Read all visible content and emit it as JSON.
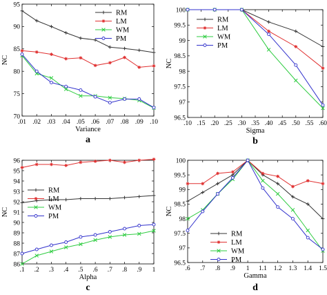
{
  "chart_data": [
    {
      "type": "line",
      "panel_label": "a",
      "xlabel": "Variance",
      "ylabel": "NC",
      "xlim": [
        0.01,
        0.1
      ],
      "ylim": [
        70,
        95
      ],
      "xtick_values": [
        0.01,
        0.02,
        0.03,
        0.04,
        0.05,
        0.06,
        0.07,
        0.08,
        0.09,
        0.1
      ],
      "xtick_labels": [
        ".01",
        ".02",
        ".03",
        ".04",
        ".05",
        ".06",
        ".07",
        ".08",
        ".09",
        ".10"
      ],
      "ytick_values": [
        70,
        75,
        80,
        85,
        90,
        95
      ],
      "ytick_labels": [
        "70",
        "75",
        "80",
        "85",
        "90",
        "95"
      ],
      "legend_position": "top-right",
      "x": [
        0.01,
        0.02,
        0.03,
        0.04,
        0.05,
        0.06,
        0.07,
        0.08,
        0.09,
        0.1
      ],
      "series": [
        {
          "name": "RM",
          "color": "#333333",
          "marker": "plus",
          "values": [
            93.5,
            91.3,
            90.0,
            88.6,
            87.4,
            87.0,
            85.4,
            85.1,
            84.7,
            84.2
          ]
        },
        {
          "name": "LM",
          "color": "#e03030",
          "marker": "star",
          "values": [
            84.6,
            84.3,
            83.8,
            82.8,
            83.0,
            81.3,
            81.9,
            83.1,
            80.9,
            81.2
          ]
        },
        {
          "name": "WM",
          "color": "#2ecc40",
          "marker": "x",
          "values": [
            83.5,
            79.5,
            78.5,
            76.0,
            74.5,
            74.5,
            74.1,
            73.9,
            73.5,
            71.8
          ]
        },
        {
          "name": "PM",
          "color": "#3030cc",
          "marker": "circle",
          "values": [
            83.8,
            80.0,
            77.5,
            76.6,
            75.8,
            74.3,
            73.0,
            73.8,
            73.8,
            71.9
          ]
        }
      ]
    },
    {
      "type": "line",
      "panel_label": "b",
      "xlabel": "Sigma",
      "ylabel": "NC",
      "xlim": [
        0.1,
        0.6
      ],
      "ylim": [
        96.5,
        100
      ],
      "xtick_values": [
        0.1,
        0.15,
        0.2,
        0.25,
        0.3,
        0.35,
        0.4,
        0.45,
        0.5,
        0.55,
        0.6
      ],
      "xtick_labels": [
        ".10",
        ".15",
        ".20",
        ".25",
        ".30",
        ".35",
        ".40",
        ".45",
        ".50",
        ".55",
        ".60"
      ],
      "ytick_values": [
        96.5,
        97,
        97.5,
        98,
        98.5,
        99,
        99.5,
        100
      ],
      "ytick_labels": [
        "96.5",
        "97",
        "97.5",
        "98",
        "98.5",
        "99",
        "99.5",
        "100"
      ],
      "legend_position": "top-left",
      "x": [
        0.1,
        0.2,
        0.3,
        0.4,
        0.5,
        0.6
      ],
      "series": [
        {
          "name": "RM",
          "color": "#333333",
          "marker": "plus",
          "values": [
            100,
            100,
            100,
            99.6,
            99.3,
            98.8
          ]
        },
        {
          "name": "LM",
          "color": "#e03030",
          "marker": "star",
          "values": [
            100,
            100,
            100,
            99.3,
            98.8,
            98.1
          ]
        },
        {
          "name": "WM",
          "color": "#2ecc40",
          "marker": "x",
          "values": [
            100,
            100,
            100,
            98.7,
            97.7,
            96.8
          ]
        },
        {
          "name": "PM",
          "color": "#3030cc",
          "marker": "circle",
          "values": [
            100,
            100,
            100,
            99.2,
            98.2,
            96.9
          ]
        }
      ]
    },
    {
      "type": "line",
      "panel_label": "c",
      "xlabel": "Alpha",
      "ylabel": "NC",
      "xlim": [
        0.1,
        1.0
      ],
      "ylim": [
        86,
        96
      ],
      "xtick_values": [
        0.1,
        0.2,
        0.3,
        0.4,
        0.5,
        0.6,
        0.7,
        0.8,
        0.9,
        1.0
      ],
      "xtick_labels": [
        ".1",
        ".2",
        ".3",
        ".4",
        ".5",
        ".6",
        ".7",
        ".8",
        ".9",
        "1"
      ],
      "ytick_values": [
        86,
        87,
        88,
        89,
        90,
        91,
        92,
        93,
        94,
        95,
        96
      ],
      "ytick_labels": [
        "86",
        "87",
        "88",
        "89",
        "90",
        "91",
        "92",
        "93",
        "94",
        "95",
        "96"
      ],
      "legend_position": "center-left",
      "x": [
        0.1,
        0.2,
        0.3,
        0.4,
        0.5,
        0.6,
        0.7,
        0.8,
        0.9,
        1.0
      ],
      "series": [
        {
          "name": "RM",
          "color": "#333333",
          "marker": "plus",
          "values": [
            91.9,
            92.1,
            92.2,
            92.2,
            92.3,
            92.3,
            92.3,
            92.4,
            92.5,
            92.6
          ]
        },
        {
          "name": "LM",
          "color": "#e03030",
          "marker": "star",
          "values": [
            95.3,
            95.6,
            95.6,
            95.5,
            95.8,
            95.9,
            96.0,
            95.8,
            96.0,
            96.1
          ]
        },
        {
          "name": "WM",
          "color": "#2ecc40",
          "marker": "x",
          "values": [
            86.0,
            86.8,
            87.2,
            87.6,
            87.9,
            88.3,
            88.6,
            88.8,
            88.9,
            89.2
          ]
        },
        {
          "name": "PM",
          "color": "#3030cc",
          "marker": "circle",
          "values": [
            87.0,
            87.4,
            87.8,
            88.1,
            88.6,
            88.8,
            89.1,
            89.4,
            89.7,
            89.8
          ]
        }
      ]
    },
    {
      "type": "line",
      "panel_label": "d",
      "xlabel": "Gamma",
      "ylabel": "NC",
      "xlim": [
        0.6,
        1.5
      ],
      "ylim": [
        96.5,
        100
      ],
      "xtick_values": [
        0.6,
        0.7,
        0.8,
        0.9,
        1.0,
        1.1,
        1.2,
        1.3,
        1.4,
        1.5
      ],
      "xtick_labels": [
        ".6",
        ".7",
        ".8",
        ".9",
        "1",
        "1.1",
        "1.2",
        "1.3",
        "1.4",
        "1.5"
      ],
      "ytick_values": [
        96.5,
        97,
        97.5,
        98,
        98.5,
        99,
        99.5,
        100
      ],
      "ytick_labels": [
        "96.5",
        "97",
        "97.5",
        "98",
        "98.5",
        "99",
        "99.5",
        "100"
      ],
      "legend_position": "bottom-center",
      "x": [
        0.6,
        0.7,
        0.8,
        0.9,
        1.0,
        1.1,
        1.2,
        1.3,
        1.4,
        1.5
      ],
      "series": [
        {
          "name": "RM",
          "color": "#333333",
          "marker": "plus",
          "values": [
            98.6,
            98.9,
            99.2,
            99.5,
            100,
            99.5,
            99.2,
            98.75,
            98.5,
            98.0
          ]
        },
        {
          "name": "LM",
          "color": "#e03030",
          "marker": "star",
          "values": [
            99.2,
            99.2,
            99.55,
            99.6,
            100,
            99.55,
            99.45,
            99.1,
            99.3,
            99.2
          ]
        },
        {
          "name": "WM",
          "color": "#2ecc40",
          "marker": "x",
          "values": [
            98.0,
            98.3,
            98.85,
            99.35,
            100,
            99.3,
            98.85,
            98.3,
            97.6,
            96.9
          ]
        },
        {
          "name": "PM",
          "color": "#3030cc",
          "marker": "circle",
          "values": [
            97.6,
            98.25,
            98.85,
            99.4,
            100,
            99.05,
            98.4,
            98.0,
            97.35,
            96.95
          ]
        }
      ]
    }
  ]
}
